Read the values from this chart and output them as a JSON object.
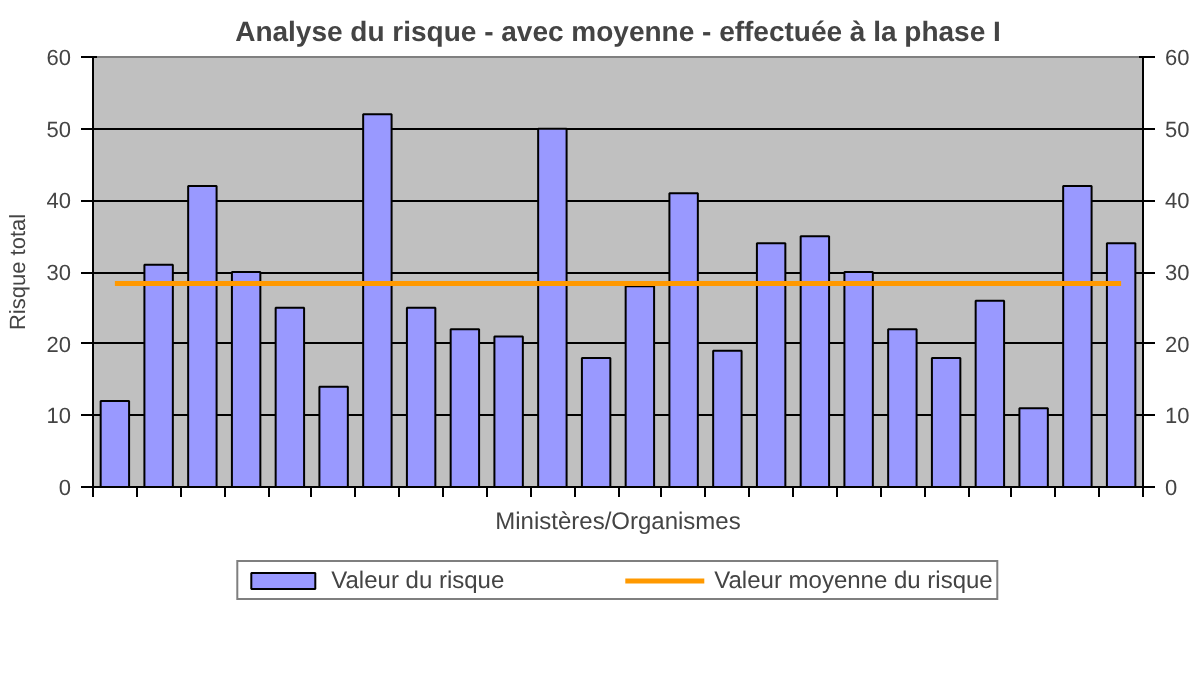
{
  "chart_data": {
    "type": "bar",
    "title": "Analyse du risque - avec moyenne - effectuée à la phase I",
    "xlabel": "Ministères/Organismes",
    "ylabel": "Risque total",
    "categories": [
      null,
      null,
      null,
      null,
      null,
      null,
      null,
      null,
      null,
      null,
      null,
      null,
      null,
      null,
      null,
      null,
      null,
      null,
      null,
      null,
      null,
      null,
      null,
      null
    ],
    "series": [
      {
        "name": "Valeur du risque",
        "color": "#9999ff",
        "values": [
          12,
          31,
          42,
          30,
          25,
          14,
          52,
          25,
          22,
          21,
          50,
          18,
          28,
          41,
          19,
          34,
          35,
          30,
          22,
          18,
          26,
          11,
          42,
          34
        ]
      },
      {
        "name": "Valeur moyenne du risque",
        "color": "#ff9900",
        "type": "line",
        "values": [
          28.4,
          28.4,
          28.4,
          28.4,
          28.4,
          28.4,
          28.4,
          28.4,
          28.4,
          28.4,
          28.4,
          28.4,
          28.4,
          28.4,
          28.4,
          28.4,
          28.4,
          28.4,
          28.4,
          28.4,
          28.4,
          28.4,
          28.4,
          28.4
        ]
      }
    ],
    "ylim": [
      0,
      60
    ],
    "yticks": [
      0,
      10,
      20,
      30,
      40,
      50,
      60
    ],
    "y2lim": [
      0,
      60
    ],
    "y2ticks": [
      0,
      10,
      20,
      30,
      40,
      50,
      60
    ],
    "grid": "y",
    "legend": "bottom"
  }
}
